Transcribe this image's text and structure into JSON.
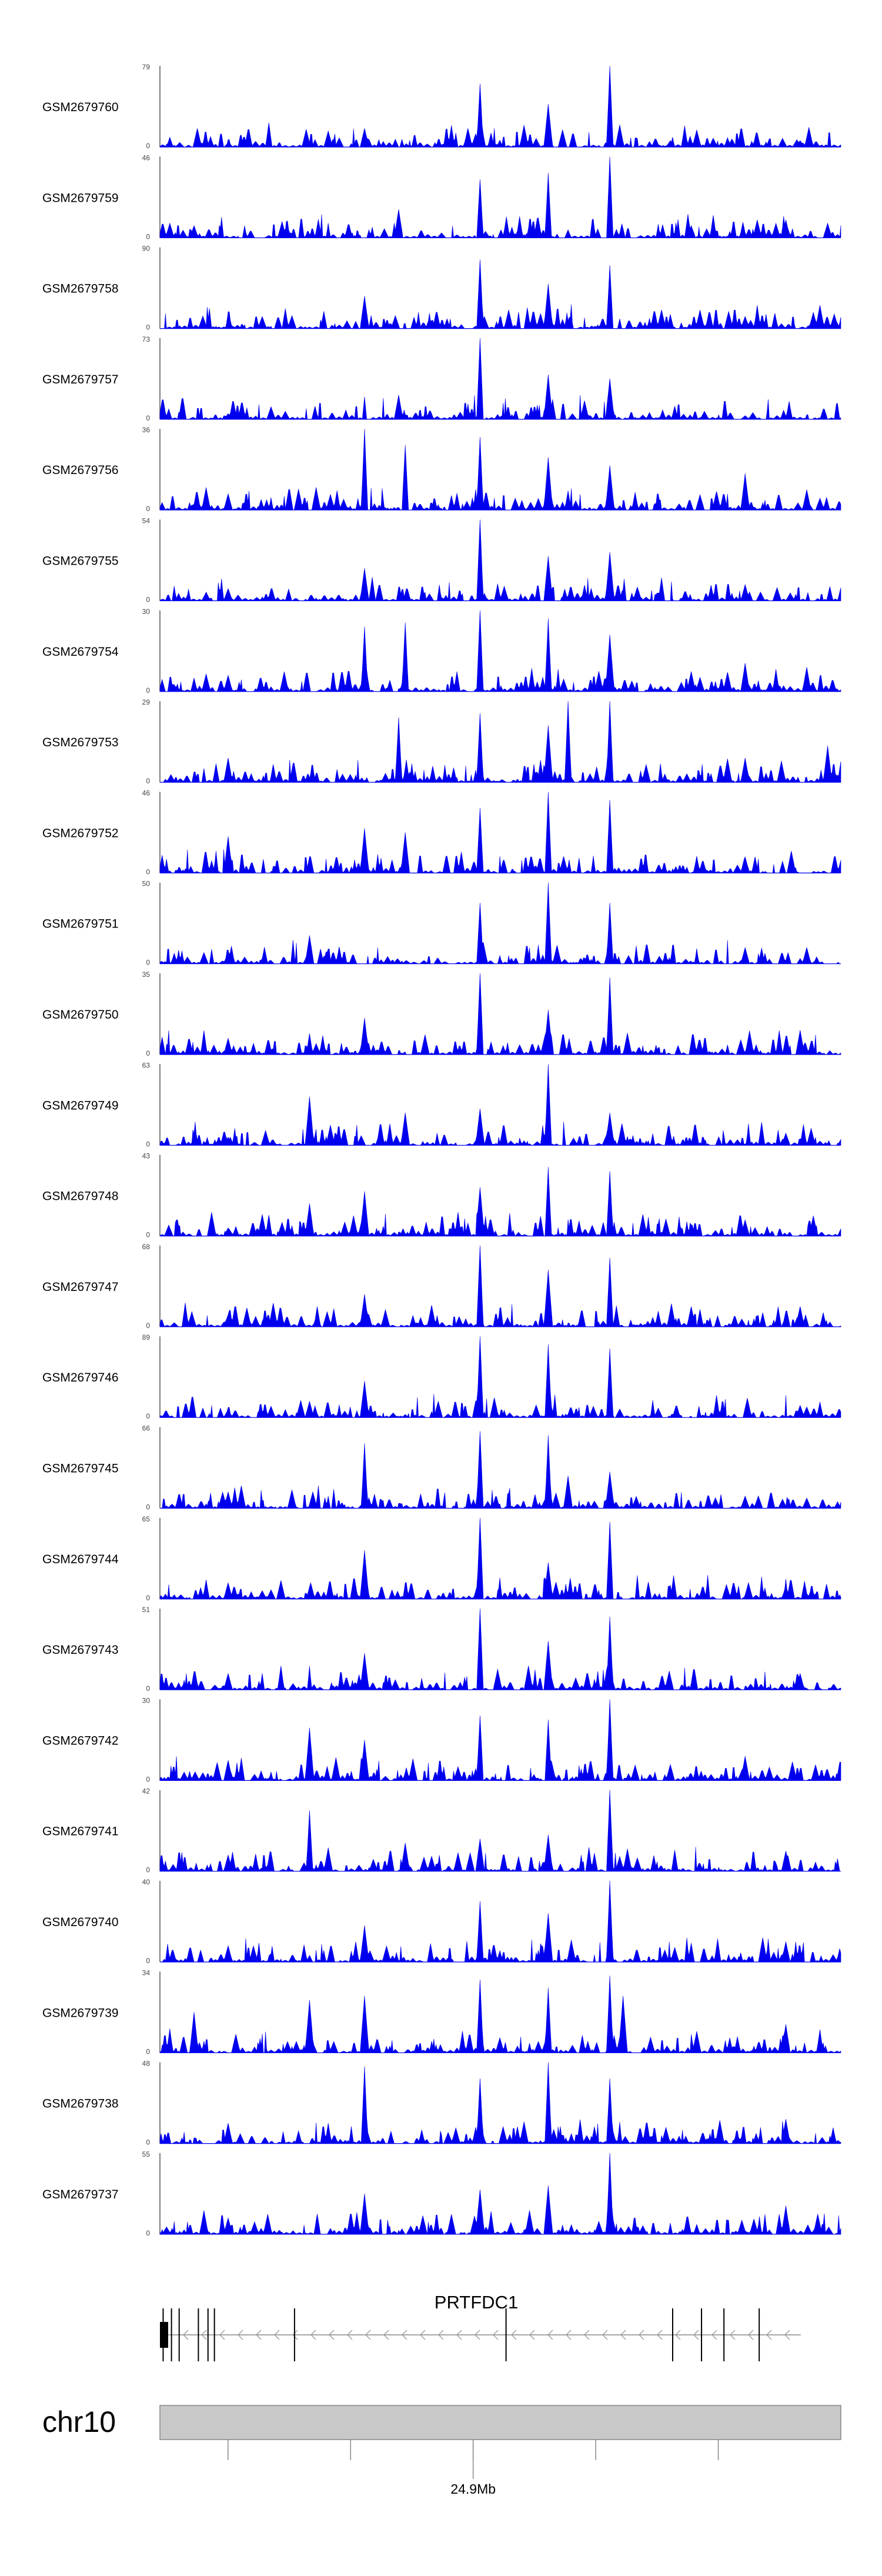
{
  "chart_data": {
    "type": "area",
    "description_of_layout": "",
    "color": "#0000ee",
    "tracks": [
      {
        "name": "GSM2679760",
        "ymax": "79",
        "ymin": "0",
        "peaks": [
          [
            0.1,
            0.05
          ],
          [
            0.22,
            0.05
          ],
          [
            0.3,
            0.23
          ],
          [
            0.47,
            0.78
          ],
          [
            0.57,
            0.53
          ],
          [
            0.66,
            1.0
          ],
          [
            0.75,
            0.08
          ],
          [
            0.84,
            0.1
          ],
          [
            0.94,
            0.08
          ]
        ],
        "seed": 1
      },
      {
        "name": "GSM2679759",
        "ymax": "46",
        "ymin": "0",
        "peaks": [
          [
            0.05,
            0.15
          ],
          [
            0.18,
            0.2
          ],
          [
            0.35,
            0.35
          ],
          [
            0.47,
            0.72
          ],
          [
            0.57,
            0.8
          ],
          [
            0.66,
            1.0
          ],
          [
            0.78,
            0.15
          ],
          [
            0.92,
            0.22
          ],
          [
            0.98,
            0.18
          ]
        ],
        "seed": 2
      },
      {
        "name": "GSM2679758",
        "ymax": "90",
        "ymin": "0",
        "peaks": [
          [
            0.1,
            0.05
          ],
          [
            0.3,
            0.4
          ],
          [
            0.47,
            0.85
          ],
          [
            0.57,
            0.55
          ],
          [
            0.66,
            0.78
          ],
          [
            0.86,
            0.15
          ],
          [
            0.96,
            0.2
          ],
          [
            0.99,
            0.18
          ]
        ],
        "seed": 3
      },
      {
        "name": "GSM2679757",
        "ymax": "73",
        "ymin": "0",
        "peaks": [
          [
            0.1,
            0.07
          ],
          [
            0.35,
            0.3
          ],
          [
            0.47,
            1.0
          ],
          [
            0.57,
            0.55
          ],
          [
            0.66,
            0.5
          ],
          [
            0.8,
            0.1
          ]
        ],
        "seed": 4
      },
      {
        "name": "GSM2679756",
        "ymax": "36",
        "ymin": "0",
        "peaks": [
          [
            0.1,
            0.2
          ],
          [
            0.3,
            1.0
          ],
          [
            0.36,
            0.8
          ],
          [
            0.47,
            0.9
          ],
          [
            0.57,
            0.65
          ],
          [
            0.66,
            0.55
          ],
          [
            0.86,
            0.45
          ],
          [
            0.95,
            0.25
          ]
        ],
        "seed": 5
      },
      {
        "name": "GSM2679755",
        "ymax": "54",
        "ymin": "0",
        "peaks": [
          [
            0.1,
            0.15
          ],
          [
            0.3,
            0.4
          ],
          [
            0.47,
            1.0
          ],
          [
            0.57,
            0.55
          ],
          [
            0.66,
            0.6
          ],
          [
            0.86,
            0.2
          ]
        ],
        "seed": 6
      },
      {
        "name": "GSM2679754",
        "ymax": "30",
        "ymin": "0",
        "peaks": [
          [
            0.1,
            0.2
          ],
          [
            0.3,
            0.8
          ],
          [
            0.36,
            0.85
          ],
          [
            0.47,
            1.0
          ],
          [
            0.57,
            0.9
          ],
          [
            0.66,
            0.7
          ],
          [
            0.86,
            0.35
          ],
          [
            0.95,
            0.3
          ]
        ],
        "seed": 7
      },
      {
        "name": "GSM2679753",
        "ymax": "29",
        "ymin": "0",
        "peaks": [
          [
            0.1,
            0.3
          ],
          [
            0.35,
            0.8
          ],
          [
            0.47,
            0.85
          ],
          [
            0.57,
            0.7
          ],
          [
            0.6,
            1.0
          ],
          [
            0.66,
            1.0
          ],
          [
            0.86,
            0.3
          ],
          [
            0.98,
            0.45
          ]
        ],
        "seed": 8
      },
      {
        "name": "GSM2679752",
        "ymax": "46",
        "ymin": "0",
        "peaks": [
          [
            0.1,
            0.45
          ],
          [
            0.3,
            0.55
          ],
          [
            0.36,
            0.5
          ],
          [
            0.47,
            0.8
          ],
          [
            0.57,
            1.0
          ],
          [
            0.66,
            0.9
          ],
          [
            0.86,
            0.2
          ]
        ],
        "seed": 9
      },
      {
        "name": "GSM2679751",
        "ymax": "50",
        "ymin": "0",
        "peaks": [
          [
            0.1,
            0.15
          ],
          [
            0.22,
            0.35
          ],
          [
            0.47,
            0.75
          ],
          [
            0.57,
            1.0
          ],
          [
            0.66,
            0.75
          ],
          [
            0.86,
            0.2
          ],
          [
            0.95,
            0.2
          ]
        ],
        "seed": 10
      },
      {
        "name": "GSM2679750",
        "ymax": "35",
        "ymin": "0",
        "peaks": [
          [
            0.1,
            0.2
          ],
          [
            0.3,
            0.45
          ],
          [
            0.47,
            1.0
          ],
          [
            0.57,
            0.55
          ],
          [
            0.66,
            0.95
          ],
          [
            0.94,
            0.3
          ]
        ],
        "seed": 11
      },
      {
        "name": "GSM2679749",
        "ymax": "63",
        "ymin": "0",
        "peaks": [
          [
            0.1,
            0.1
          ],
          [
            0.22,
            0.6
          ],
          [
            0.36,
            0.4
          ],
          [
            0.47,
            0.45
          ],
          [
            0.57,
            1.0
          ],
          [
            0.66,
            0.4
          ],
          [
            0.92,
            0.15
          ]
        ],
        "seed": 12
      },
      {
        "name": "GSM2679748",
        "ymax": "43",
        "ymin": "0",
        "peaks": [
          [
            0.1,
            0.1
          ],
          [
            0.22,
            0.4
          ],
          [
            0.3,
            0.55
          ],
          [
            0.47,
            0.6
          ],
          [
            0.57,
            0.85
          ],
          [
            0.66,
            0.8
          ],
          [
            0.86,
            0.2
          ],
          [
            0.96,
            0.25
          ]
        ],
        "seed": 13
      },
      {
        "name": "GSM2679747",
        "ymax": "68",
        "ymin": "0",
        "peaks": [
          [
            0.1,
            0.15
          ],
          [
            0.3,
            0.4
          ],
          [
            0.47,
            1.0
          ],
          [
            0.57,
            0.7
          ],
          [
            0.66,
            0.85
          ],
          [
            0.78,
            0.25
          ],
          [
            0.94,
            0.25
          ]
        ],
        "seed": 14
      },
      {
        "name": "GSM2679746",
        "ymax": "89",
        "ymin": "0",
        "peaks": [
          [
            0.1,
            0.1
          ],
          [
            0.22,
            0.2
          ],
          [
            0.3,
            0.45
          ],
          [
            0.47,
            1.0
          ],
          [
            0.57,
            0.9
          ],
          [
            0.66,
            0.85
          ],
          [
            0.94,
            0.15
          ]
        ],
        "seed": 15
      },
      {
        "name": "GSM2679745",
        "ymax": "66",
        "ymin": "0",
        "peaks": [
          [
            0.1,
            0.2
          ],
          [
            0.3,
            0.8
          ],
          [
            0.47,
            0.95
          ],
          [
            0.57,
            0.9
          ],
          [
            0.6,
            0.4
          ],
          [
            0.66,
            0.45
          ],
          [
            0.86,
            0.15
          ]
        ],
        "seed": 16
      },
      {
        "name": "GSM2679744",
        "ymax": "65",
        "ymin": "0",
        "peaks": [
          [
            0.1,
            0.2
          ],
          [
            0.3,
            0.6
          ],
          [
            0.47,
            1.0
          ],
          [
            0.57,
            0.45
          ],
          [
            0.66,
            0.95
          ],
          [
            0.92,
            0.15
          ]
        ],
        "seed": 17
      },
      {
        "name": "GSM2679743",
        "ymax": "51",
        "ymin": "0",
        "peaks": [
          [
            0.1,
            0.2
          ],
          [
            0.3,
            0.45
          ],
          [
            0.47,
            1.0
          ],
          [
            0.57,
            0.6
          ],
          [
            0.66,
            0.9
          ],
          [
            0.94,
            0.2
          ]
        ],
        "seed": 18
      },
      {
        "name": "GSM2679742",
        "ymax": "30",
        "ymin": "0",
        "peaks": [
          [
            0.1,
            0.25
          ],
          [
            0.22,
            0.65
          ],
          [
            0.3,
            0.5
          ],
          [
            0.47,
            0.8
          ],
          [
            0.57,
            0.75
          ],
          [
            0.66,
            1.0
          ],
          [
            0.86,
            0.3
          ]
        ],
        "seed": 19
      },
      {
        "name": "GSM2679741",
        "ymax": "42",
        "ymin": "0",
        "peaks": [
          [
            0.1,
            0.2
          ],
          [
            0.22,
            0.75
          ],
          [
            0.36,
            0.35
          ],
          [
            0.47,
            0.4
          ],
          [
            0.57,
            0.45
          ],
          [
            0.66,
            1.0
          ],
          [
            0.92,
            0.25
          ]
        ],
        "seed": 20
      },
      {
        "name": "GSM2679740",
        "ymax": "40",
        "ymin": "0",
        "peaks": [
          [
            0.1,
            0.2
          ],
          [
            0.3,
            0.45
          ],
          [
            0.47,
            0.75
          ],
          [
            0.57,
            0.6
          ],
          [
            0.66,
            1.0
          ],
          [
            0.92,
            0.25
          ]
        ],
        "seed": 21
      },
      {
        "name": "GSM2679739",
        "ymax": "34",
        "ymin": "0",
        "peaks": [
          [
            0.05,
            0.5
          ],
          [
            0.22,
            0.65
          ],
          [
            0.3,
            0.7
          ],
          [
            0.47,
            0.9
          ],
          [
            0.57,
            0.8
          ],
          [
            0.66,
            0.95
          ],
          [
            0.68,
            0.7
          ],
          [
            0.92,
            0.35
          ]
        ],
        "seed": 22
      },
      {
        "name": "GSM2679738",
        "ymax": "48",
        "ymin": "0",
        "peaks": [
          [
            0.1,
            0.25
          ],
          [
            0.3,
            0.95
          ],
          [
            0.47,
            0.8
          ],
          [
            0.57,
            1.0
          ],
          [
            0.66,
            0.8
          ],
          [
            0.92,
            0.3
          ]
        ],
        "seed": 23
      },
      {
        "name": "GSM2679737",
        "ymax": "55",
        "ymin": "0",
        "peaks": [
          [
            0.1,
            0.2
          ],
          [
            0.3,
            0.5
          ],
          [
            0.47,
            0.55
          ],
          [
            0.57,
            0.6
          ],
          [
            0.66,
            1.0
          ],
          [
            0.92,
            0.35
          ]
        ],
        "seed": 24
      }
    ],
    "gene": {
      "name": "PRTFDC1",
      "strand": "-",
      "exons": [
        0.005,
        0.018,
        0.03,
        0.06,
        0.075,
        0.085,
        0.21,
        0.54,
        0.8,
        0.845,
        0.88,
        0.935
      ]
    },
    "chromosome": "chr10",
    "axis": {
      "tick_label": "24.9Mb",
      "tick_label_pos": 0.46,
      "ticks": [
        0.1,
        0.28,
        0.46,
        0.64,
        0.82
      ]
    }
  }
}
